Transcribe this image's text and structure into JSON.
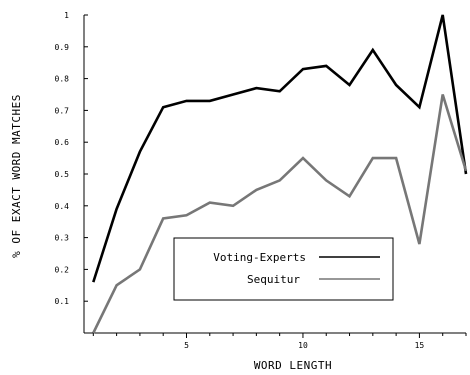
{
  "chart_data": {
    "type": "line",
    "xlabel": "WORD LENGTH",
    "ylabel": "% OF EXACT WORD MATCHES",
    "xlim": [
      0.6,
      17
    ],
    "ylim": [
      0.0,
      1.0
    ],
    "x_ticks": [
      5,
      10,
      15
    ],
    "y_ticks": [
      0.1,
      0.2,
      0.3,
      0.4,
      0.5,
      0.6,
      0.7,
      0.8,
      0.9,
      1.0
    ],
    "y_tick_labels": [
      "0.1",
      "0.2",
      "0.3",
      "0.4",
      "0.5",
      "0.6",
      "0.7",
      "0.8",
      "0.9",
      "1"
    ],
    "legend_position": "lower-center",
    "series": [
      {
        "name": "Voting-Experts",
        "color": "#000000",
        "x": [
          1,
          2,
          3,
          4,
          5,
          6,
          7,
          8,
          9,
          10,
          11,
          12,
          13,
          14,
          15,
          16,
          17
        ],
        "y": [
          0.16,
          0.39,
          0.57,
          0.71,
          0.73,
          0.73,
          0.75,
          0.77,
          0.76,
          0.83,
          0.84,
          0.78,
          0.89,
          0.78,
          0.71,
          1.0,
          0.5
        ]
      },
      {
        "name": "Sequitur",
        "color": "#777777",
        "x": [
          1,
          2,
          3,
          4,
          5,
          6,
          7,
          8,
          9,
          10,
          11,
          12,
          13,
          14,
          15,
          16,
          17
        ],
        "y": [
          0.0,
          0.15,
          0.2,
          0.36,
          0.37,
          0.41,
          0.4,
          0.45,
          0.48,
          0.55,
          0.48,
          0.43,
          0.55,
          0.55,
          0.28,
          0.75,
          0.51
        ]
      }
    ]
  }
}
